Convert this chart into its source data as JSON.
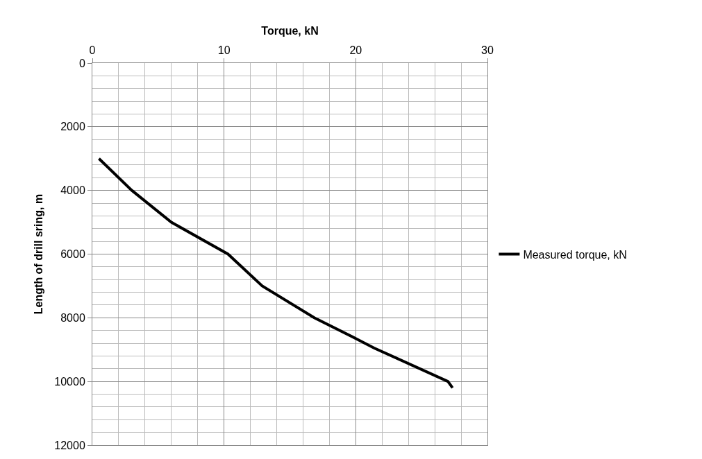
{
  "chart_data": {
    "type": "line",
    "xlabel": "Torque, kN",
    "ylabel": "Length of drill sring, m",
    "series": [
      {
        "name": "Measured torque, kN",
        "color": "#000000",
        "x": [
          0.5,
          3,
          6,
          10.3,
          12.9,
          16.85,
          20,
          21.4,
          27,
          27.35
        ],
        "values": [
          3000,
          4000,
          5000,
          6000,
          7000,
          8000,
          8650,
          8950,
          10000,
          10200
        ]
      }
    ],
    "xlim": [
      0,
      30
    ],
    "xticks": [
      0,
      10,
      20,
      30
    ],
    "ylim": [
      12000,
      0
    ],
    "yticks": [
      0,
      2000,
      4000,
      6000,
      8000,
      10000,
      12000
    ],
    "grid": true,
    "legend": "right",
    "marker": "none",
    "line_style": "solid"
  }
}
